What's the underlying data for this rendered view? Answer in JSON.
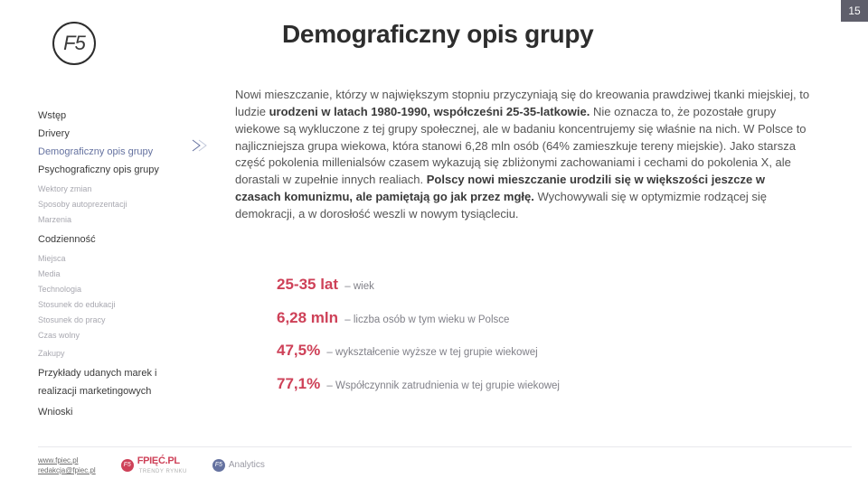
{
  "page_number": "15",
  "logo_text": "F5",
  "title": "Demograficzny opis grupy",
  "nav": {
    "items": [
      {
        "label": "Wstęp",
        "cls": "main"
      },
      {
        "label": "Drivery",
        "cls": "main"
      },
      {
        "label": "Demograficzny opis grupy",
        "cls": "main active"
      },
      {
        "label": "Psychograficzny opis grupy",
        "cls": "main"
      },
      {
        "label": "Wektory zmian",
        "cls": "sub section-gap"
      },
      {
        "label": "Sposoby autoprezentacji",
        "cls": "sub"
      },
      {
        "label": "Marzenia",
        "cls": "sub"
      },
      {
        "label": "Codzienność",
        "cls": "main section-gap"
      },
      {
        "label": "Miejsca",
        "cls": "sub section-gap"
      },
      {
        "label": "Media",
        "cls": "sub"
      },
      {
        "label": "Technologia",
        "cls": "sub"
      },
      {
        "label": "Stosunek do edukacji",
        "cls": "sub"
      },
      {
        "label": "Stosunek do pracy",
        "cls": "sub"
      },
      {
        "label": "Czas wolny",
        "cls": "sub"
      },
      {
        "label": "Zakupy",
        "cls": "sub section-gap"
      },
      {
        "label": "Przykłady udanych marek i",
        "cls": "main section-gap"
      },
      {
        "label": "realizacji marketingowych",
        "cls": "main"
      },
      {
        "label": "Wnioski",
        "cls": "main section-gap"
      }
    ],
    "marker_color": "#6572a0"
  },
  "body": {
    "lead": "Nowi mieszczanie, którzy w największym stopniu przyczyniają się do kreowania prawdziwej tkanki miejskiej, to ludzie ",
    "bold1": "urodzeni w latach 1980-1990, współcześni 25-35-latkowie.",
    "rest1": " Nie oznacza to, że pozostałe grupy wiekowe są wykluczone z tej grupy społecznej, ale w badaniu koncentrujemy się właśnie na nich. W Polsce to najliczniejsza grupa wiekowa, która stanowi 6,28 mln osób (64% zamieszkuje tereny miejskie). Jako starsza część pokolenia millenialsów czasem wykazują się zbliżonymi zachowaniami i cechami do pokolenia X, ale dorastali w zupełnie innych realiach. ",
    "bold2": "Polscy nowi mieszczanie urodzili się w większości jeszcze w czasach komunizmu, ale pamiętają go jak przez mgłę.",
    "rest2": " Wychowywali się w optymizmie rodzącej się demokracji, a w dorosłość weszli w nowym tysiącleciu."
  },
  "stats": [
    {
      "value": "25-35 lat",
      "desc": "– wiek"
    },
    {
      "value": "6,28 mln",
      "desc": "– liczba osób w tym wieku w Polsce"
    },
    {
      "value": "47,5%",
      "desc": "– wykształcenie wyższe w tej grupie wiekowej"
    },
    {
      "value": "77,1%",
      "desc": "– Współczynnik zatrudnienia w tej grupie wiekowej"
    }
  ],
  "footer": {
    "link1": "www.fpiec.pl",
    "link2": "redakcja@fpiec.pl",
    "brand_icon": "F5",
    "brand_name": "FPIĘĆ.PL",
    "brand_tag": "TRENDY RYNKU",
    "analytics_icon": "F5",
    "analytics_label": "Analytics"
  },
  "colors": {
    "accent_red": "#ce4158",
    "accent_blue": "#6572a0",
    "pagenum_bg": "#5f5f6b"
  }
}
